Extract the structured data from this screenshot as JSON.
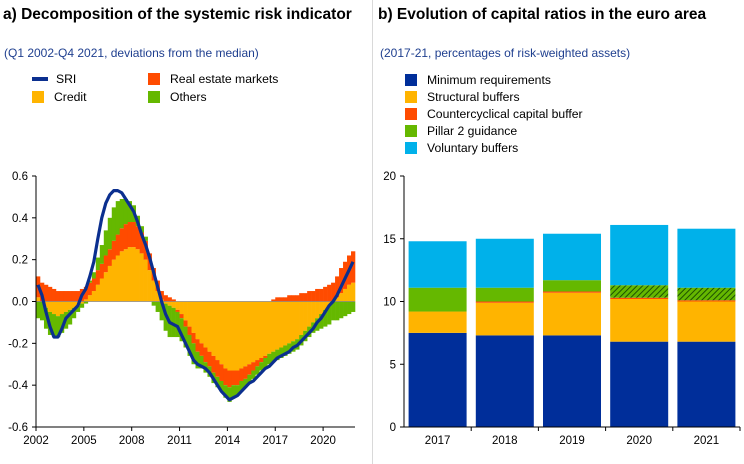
{
  "colors": {
    "sri": "#0b2f8f",
    "credit": "#ffb400",
    "real_estate": "#ff4b00",
    "others": "#65b800",
    "minimum": "#002e9a",
    "structural": "#ffb400",
    "ccyb": "#ff4b00",
    "p2g": "#65b800",
    "voluntary": "#00b1ea",
    "axis": "#000000"
  },
  "panel_a": {
    "title": "a) Decomposition of the systemic risk indicator",
    "subtitle": "(Q1 2002-Q4 2021, deviations from the median)",
    "legend": [
      "SRI",
      "Credit",
      "Real estate markets",
      "Others"
    ]
  },
  "panel_b": {
    "title": "b) Evolution of capital ratios in the euro area",
    "subtitle": "(2017-21, percentages of risk-weighted assets)",
    "legend": [
      "Minimum requirements",
      "Structural buffers",
      "Countercyclical capital buffer",
      "Pillar 2 guidance",
      "Voluntary buffers"
    ]
  },
  "chart_data": [
    {
      "type": "bar",
      "stacked": true,
      "title": "a) Decomposition of the systemic risk indicator",
      "subtitle": "(Q1 2002-Q4 2021, deviations from the median)",
      "x_ticks": [
        "2002",
        "2005",
        "2008",
        "2011",
        "2014",
        "2017",
        "2020"
      ],
      "ylim": [
        -0.6,
        0.6
      ],
      "y_ticks": [
        "0.6",
        "0.4",
        "0.2",
        "0.0",
        "-0.2",
        "-0.4",
        "-0.6"
      ],
      "quarters": {
        "start": "2002 Q1",
        "end": "2021 Q4",
        "count": 80
      },
      "series": [
        {
          "name": "Credit",
          "values": [
            0.02,
            0.0,
            -0.03,
            -0.05,
            -0.06,
            -0.07,
            -0.06,
            -0.05,
            -0.04,
            -0.03,
            -0.02,
            -0.01,
            0.01,
            0.03,
            0.05,
            0.08,
            0.11,
            0.14,
            0.17,
            0.2,
            0.22,
            0.24,
            0.25,
            0.26,
            0.26,
            0.25,
            0.23,
            0.2,
            0.15,
            0.1,
            0.05,
            0.01,
            -0.01,
            -0.02,
            -0.03,
            -0.04,
            -0.06,
            -0.09,
            -0.12,
            -0.15,
            -0.18,
            -0.2,
            -0.22,
            -0.24,
            -0.26,
            -0.28,
            -0.3,
            -0.32,
            -0.33,
            -0.33,
            -0.33,
            -0.32,
            -0.31,
            -0.3,
            -0.29,
            -0.28,
            -0.27,
            -0.26,
            -0.25,
            -0.24,
            -0.23,
            -0.22,
            -0.21,
            -0.2,
            -0.19,
            -0.18,
            -0.16,
            -0.14,
            -0.12,
            -0.1,
            -0.08,
            -0.06,
            -0.04,
            -0.02,
            0.0,
            0.02,
            0.04,
            0.06,
            0.08,
            0.09
          ]
        },
        {
          "name": "Real estate markets",
          "values": [
            0.1,
            0.09,
            0.08,
            0.07,
            0.06,
            0.05,
            0.05,
            0.05,
            0.05,
            0.05,
            0.05,
            0.06,
            0.06,
            0.06,
            0.06,
            0.07,
            0.07,
            0.08,
            0.08,
            0.09,
            0.1,
            0.11,
            0.12,
            0.12,
            0.12,
            0.11,
            0.1,
            0.09,
            0.08,
            0.06,
            0.05,
            0.04,
            0.03,
            0.02,
            0.01,
            -0.01,
            -0.02,
            -0.03,
            -0.04,
            -0.05,
            -0.06,
            -0.06,
            -0.07,
            -0.07,
            -0.08,
            -0.08,
            -0.08,
            -0.08,
            -0.08,
            -0.07,
            -0.07,
            -0.06,
            -0.06,
            -0.05,
            -0.04,
            -0.03,
            -0.02,
            -0.01,
            0.0,
            0.01,
            0.02,
            0.02,
            0.02,
            0.03,
            0.03,
            0.03,
            0.04,
            0.04,
            0.05,
            0.05,
            0.06,
            0.06,
            0.07,
            0.08,
            0.09,
            0.1,
            0.12,
            0.13,
            0.14,
            0.15
          ]
        },
        {
          "name": "Others",
          "values": [
            -0.08,
            -0.09,
            -0.1,
            -0.11,
            -0.11,
            -0.1,
            -0.09,
            -0.08,
            -0.07,
            -0.05,
            -0.03,
            -0.02,
            -0.01,
            0.01,
            0.03,
            0.06,
            0.09,
            0.12,
            0.15,
            0.16,
            0.16,
            0.14,
            0.12,
            0.1,
            0.08,
            0.05,
            0.03,
            0.02,
            0.0,
            -0.02,
            -0.05,
            -0.09,
            -0.13,
            -0.15,
            -0.14,
            -0.12,
            -0.11,
            -0.1,
            -0.1,
            -0.1,
            -0.08,
            -0.06,
            -0.05,
            -0.05,
            -0.05,
            -0.05,
            -0.05,
            -0.06,
            -0.07,
            -0.06,
            -0.05,
            -0.05,
            -0.04,
            -0.04,
            -0.04,
            -0.04,
            -0.04,
            -0.05,
            -0.05,
            -0.05,
            -0.05,
            -0.05,
            -0.05,
            -0.05,
            -0.05,
            -0.05,
            -0.05,
            -0.05,
            -0.05,
            -0.05,
            -0.06,
            -0.07,
            -0.08,
            -0.09,
            -0.09,
            -0.09,
            -0.08,
            -0.07,
            -0.06,
            -0.05
          ]
        },
        {
          "name": "SRI",
          "type": "line",
          "values": [
            0.08,
            0.03,
            -0.05,
            -0.12,
            -0.17,
            -0.17,
            -0.13,
            -0.08,
            -0.06,
            -0.04,
            -0.02,
            0.03,
            0.06,
            0.12,
            0.19,
            0.3,
            0.4,
            0.47,
            0.51,
            0.53,
            0.53,
            0.52,
            0.49,
            0.46,
            0.43,
            0.38,
            0.32,
            0.27,
            0.21,
            0.14,
            0.07,
            0.0,
            -0.06,
            -0.1,
            -0.11,
            -0.12,
            -0.16,
            -0.2,
            -0.24,
            -0.28,
            -0.3,
            -0.31,
            -0.32,
            -0.34,
            -0.37,
            -0.4,
            -0.43,
            -0.45,
            -0.47,
            -0.46,
            -0.45,
            -0.43,
            -0.41,
            -0.39,
            -0.38,
            -0.36,
            -0.34,
            -0.32,
            -0.31,
            -0.29,
            -0.27,
            -0.26,
            -0.25,
            -0.24,
            -0.22,
            -0.21,
            -0.19,
            -0.17,
            -0.15,
            -0.13,
            -0.1,
            -0.08,
            -0.05,
            -0.02,
            0.0,
            0.03,
            0.07,
            0.11,
            0.15,
            0.19
          ]
        }
      ]
    },
    {
      "type": "bar",
      "stacked": true,
      "title": "b) Evolution of capital ratios in the euro area",
      "subtitle": "(2017-21, percentages of risk-weighted assets)",
      "categories": [
        "2017",
        "2018",
        "2019",
        "2020",
        "2021"
      ],
      "ylim": [
        0,
        20
      ],
      "y_ticks": [
        "20",
        "15",
        "10",
        "5",
        "0"
      ],
      "series": [
        {
          "name": "Minimum requirements",
          "values": [
            7.5,
            7.3,
            7.3,
            6.8,
            6.8
          ]
        },
        {
          "name": "Structural buffers",
          "values": [
            1.7,
            2.6,
            3.4,
            3.4,
            3.2
          ]
        },
        {
          "name": "Countercyclical capital buffer",
          "values": [
            0.0,
            0.1,
            0.1,
            0.1,
            0.1
          ]
        },
        {
          "name": "Pillar 2 guidance",
          "values": [
            1.9,
            1.1,
            0.9,
            1.0,
            1.0
          ]
        },
        {
          "name": "Voluntary buffers",
          "values": [
            3.7,
            3.9,
            3.7,
            4.8,
            4.7
          ]
        }
      ]
    }
  ]
}
